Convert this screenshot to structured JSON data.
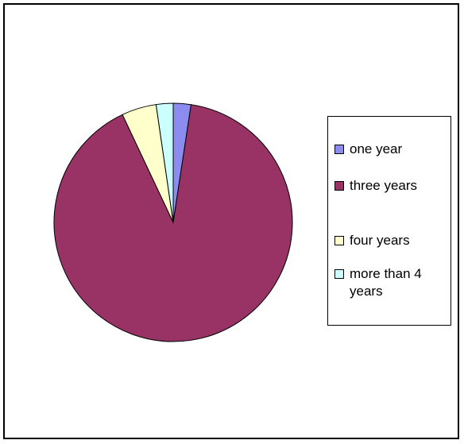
{
  "chart_data": {
    "type": "pie",
    "title": "",
    "categories": [
      "one year",
      "three years",
      "four years",
      "more than 4 years"
    ],
    "values": [
      2.4,
      90.6,
      4.7,
      2.3
    ],
    "colors": [
      "#8b8bf0",
      "#993366",
      "#ffffcc",
      "#ccffff"
    ],
    "legend_position": "right",
    "legend": [
      {
        "label": "one year",
        "color": "#8b8bf0"
      },
      {
        "label": "three years",
        "color": "#993366"
      },
      {
        "label": "four years",
        "color": "#ffffcc"
      },
      {
        "label": "more than 4 years",
        "color": "#ccffff"
      }
    ]
  }
}
